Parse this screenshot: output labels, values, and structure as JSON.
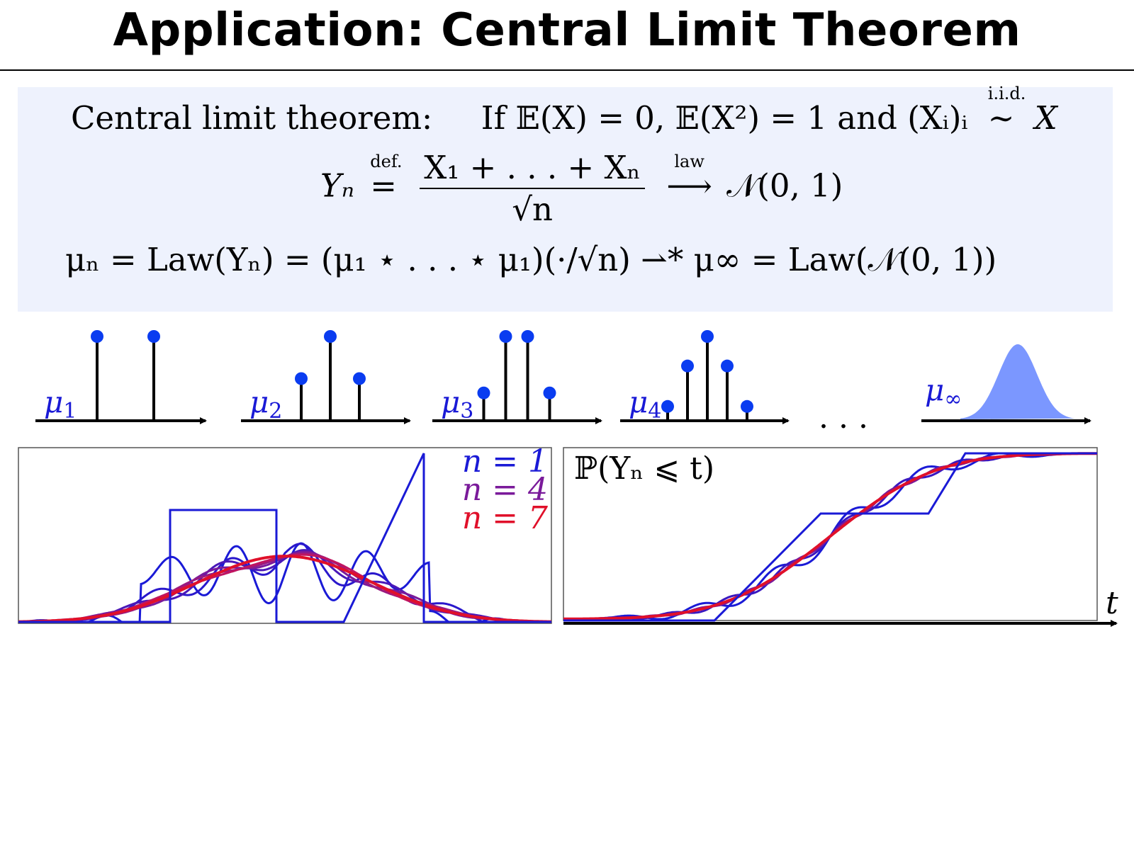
{
  "slide": {
    "title": "Application: Central Limit Theorem"
  },
  "theorem": {
    "line1_prefix": "Central limit theorem:",
    "line1_if": "If 𝔼(X) = 0, 𝔼(X²) = 1 and (Xᵢ)ᵢ",
    "line1_iid": "i.i.d.",
    "line1_sim": "∼",
    "line1_X": "X",
    "line2_lhs": "Yₙ",
    "line2_def": "def.",
    "line2_num": "X₁ + . . . + Xₙ",
    "line2_den": "√n",
    "line2_law": "law",
    "line2_rhs": "𝒩(0, 1)",
    "line3": "μₙ = Law(Yₙ) = (μ₁ ⋆ . . . ⋆ μ₁)(·/√n)  ⇀* μ∞ = Law(𝒩(0, 1))"
  },
  "measures": [
    {
      "label": "μ1",
      "sub": "1",
      "atoms": [
        {
          "x": -1,
          "w": 1.0
        },
        {
          "x": 1,
          "w": 1.0
        }
      ]
    },
    {
      "label": "μ2",
      "sub": "2",
      "atoms": [
        {
          "x": -1,
          "w": 0.5
        },
        {
          "x": 0,
          "w": 1.0
        },
        {
          "x": 1,
          "w": 0.5
        }
      ]
    },
    {
      "label": "μ3",
      "sub": "3",
      "atoms": [
        {
          "x": -1.5,
          "w": 0.33
        },
        {
          "x": -0.5,
          "w": 1.0
        },
        {
          "x": 0.5,
          "w": 1.0
        },
        {
          "x": 1.5,
          "w": 0.33
        }
      ]
    },
    {
      "label": "μ4",
      "sub": "4",
      "atoms": [
        {
          "x": -2,
          "w": 0.17
        },
        {
          "x": -1,
          "w": 0.65
        },
        {
          "x": 0,
          "w": 1.0
        },
        {
          "x": 1,
          "w": 0.65
        },
        {
          "x": 2,
          "w": 0.17
        }
      ]
    }
  ],
  "limit_measure": {
    "label": "μ∞",
    "sub": "∞"
  },
  "ellipsis": ". . .",
  "density_plot": {
    "legend": [
      {
        "text": "n = 1",
        "color": "#1a1ad6"
      },
      {
        "text": "n = 4",
        "color": "#7a1a9a"
      },
      {
        "text": "n = 7",
        "color": "#e0102a"
      }
    ]
  },
  "cdf_plot": {
    "label": "ℙ(Yₙ ⩽ t)",
    "xlabel": "t"
  },
  "colors": {
    "atom": "#0a3cf0",
    "gaussian_fill": "#7b97ff",
    "axis": "#000000",
    "box": "#eef2fd"
  }
}
